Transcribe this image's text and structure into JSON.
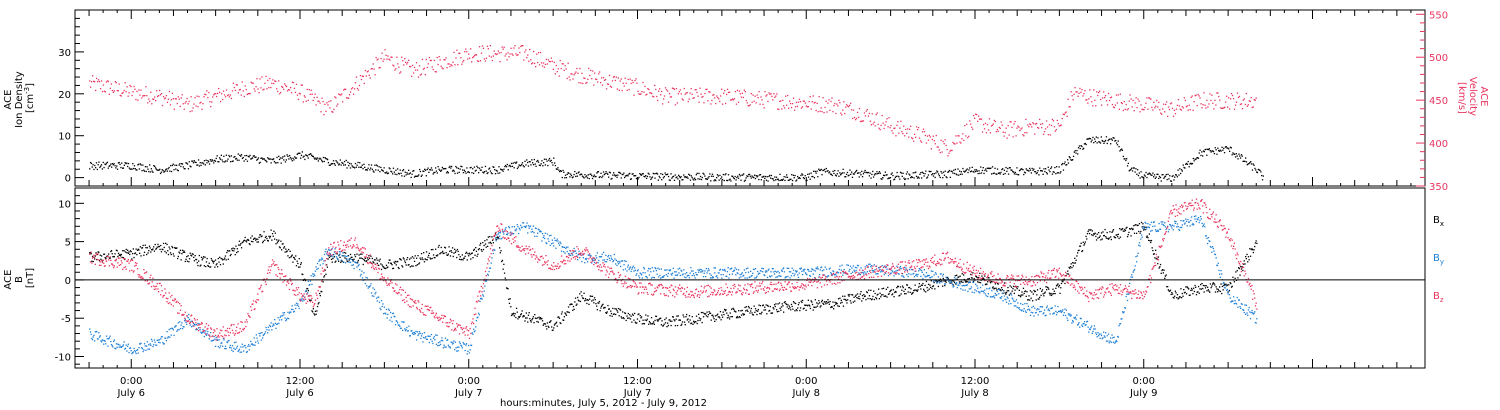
{
  "chart_data": [
    {
      "type": "scatter",
      "panel": "top",
      "left_ylabel_lines": [
        "ACE",
        "Ion Density",
        "[cm"
      ],
      "left_ylabel_superscript": "-3",
      "left_ylabel_tail": "]",
      "right_ylabel_lines": [
        "ACE",
        "Velocity",
        "[km/s]"
      ],
      "ylim_left": [
        -2,
        40
      ],
      "ylim_right": [
        350,
        555
      ],
      "y_ticks_left": [
        0,
        10,
        20,
        30
      ],
      "y_ticks_right": [
        350,
        400,
        450,
        500,
        550
      ],
      "xlim_hours": [
        -4,
        92
      ],
      "series": [
        {
          "axis": "left",
          "color": "#000000",
          "keypoints": [
            [
              -3,
              3
            ],
            [
              0,
              3
            ],
            [
              2,
              2
            ],
            [
              4,
              3
            ],
            [
              6,
              4.5
            ],
            [
              8,
              5
            ],
            [
              10,
              4
            ],
            [
              12,
              5.5
            ],
            [
              14,
              4
            ],
            [
              16,
              3
            ],
            [
              18,
              2
            ],
            [
              20,
              1
            ],
            [
              22,
              2
            ],
            [
              24,
              2
            ],
            [
              26,
              2
            ],
            [
              28,
              3.5
            ],
            [
              30,
              4
            ],
            [
              30.5,
              1
            ],
            [
              36,
              0.5
            ],
            [
              42,
              0.2
            ],
            [
              48,
              0.2
            ],
            [
              49,
              1.5
            ],
            [
              52,
              1
            ],
            [
              54,
              0.5
            ],
            [
              58,
              1
            ],
            [
              60,
              2
            ],
            [
              64,
              1.5
            ],
            [
              66,
              2
            ],
            [
              68,
              9
            ],
            [
              70,
              9
            ],
            [
              71,
              2
            ],
            [
              72,
              0.5
            ],
            [
              74,
              0
            ],
            [
              76,
              6
            ],
            [
              78,
              7
            ],
            [
              80,
              2
            ],
            [
              80.5,
              0
            ]
          ]
        },
        {
          "axis": "right",
          "color": "#e8355f",
          "keypoints": [
            [
              -3,
              470
            ],
            [
              0,
              460
            ],
            [
              2,
              455
            ],
            [
              4,
              445
            ],
            [
              6,
              455
            ],
            [
              8,
              465
            ],
            [
              10,
              470
            ],
            [
              12,
              460
            ],
            [
              14,
              440
            ],
            [
              16,
              470
            ],
            [
              18,
              500
            ],
            [
              20,
              485
            ],
            [
              22,
              495
            ],
            [
              24,
              505
            ],
            [
              28,
              505
            ],
            [
              30,
              490
            ],
            [
              32,
              480
            ],
            [
              36,
              465
            ],
            [
              38,
              455
            ],
            [
              42,
              455
            ],
            [
              46,
              450
            ],
            [
              50,
              445
            ],
            [
              52,
              435
            ],
            [
              54,
              420
            ],
            [
              56,
              410
            ],
            [
              58,
              395
            ],
            [
              60,
              425
            ],
            [
              62,
              415
            ],
            [
              64,
              420
            ],
            [
              66,
              420
            ],
            [
              67,
              460
            ],
            [
              68,
              455
            ],
            [
              70,
              450
            ],
            [
              72,
              445
            ],
            [
              74,
              440
            ],
            [
              76,
              450
            ],
            [
              78,
              450
            ],
            [
              80,
              450
            ]
          ]
        }
      ]
    },
    {
      "type": "scatter",
      "panel": "bottom",
      "left_ylabel_lines": [
        "ACE",
        "B",
        "[nT]"
      ],
      "ylim": [
        -11.5,
        12
      ],
      "y_ticks": [
        -10,
        -5,
        0,
        5,
        10
      ],
      "zero_line": true,
      "xlim_hours": [
        -4,
        92
      ],
      "series": [
        {
          "name": "B",
          "subscript": "x",
          "color": "#000000",
          "keypoints": [
            [
              -3,
              3
            ],
            [
              0,
              3.5
            ],
            [
              2,
              4.5
            ],
            [
              4,
              3
            ],
            [
              6,
              2
            ],
            [
              8,
              5
            ],
            [
              10,
              6
            ],
            [
              12,
              2
            ],
            [
              13,
              -5
            ],
            [
              14,
              3
            ],
            [
              16,
              3
            ],
            [
              18,
              2
            ],
            [
              20,
              2.5
            ],
            [
              22,
              4
            ],
            [
              24,
              3
            ],
            [
              26,
              6
            ],
            [
              27,
              -4
            ],
            [
              30,
              -6
            ],
            [
              32,
              -2
            ],
            [
              34,
              -4
            ],
            [
              36,
              -5
            ],
            [
              38,
              -5.5
            ],
            [
              42,
              -4.5
            ],
            [
              46,
              -3.5
            ],
            [
              50,
              -3
            ],
            [
              52,
              -2
            ],
            [
              56,
              -1
            ],
            [
              58,
              0
            ],
            [
              60,
              0.5
            ],
            [
              62,
              -1
            ],
            [
              64,
              -2
            ],
            [
              66,
              -1
            ],
            [
              68,
              6
            ],
            [
              70,
              6
            ],
            [
              72,
              7
            ],
            [
              74,
              -2
            ],
            [
              76,
              -1
            ],
            [
              78,
              -1
            ],
            [
              80,
              5
            ]
          ]
        },
        {
          "name": "B",
          "subscript": "y",
          "color": "#1e7fd6",
          "keypoints": [
            [
              -3,
              -7
            ],
            [
              0,
              -9
            ],
            [
              2,
              -8
            ],
            [
              4,
              -5
            ],
            [
              6,
              -8
            ],
            [
              8,
              -9
            ],
            [
              10,
              -6
            ],
            [
              12,
              -3
            ],
            [
              13,
              1
            ],
            [
              14,
              4
            ],
            [
              16,
              2
            ],
            [
              18,
              -4
            ],
            [
              20,
              -7
            ],
            [
              22,
              -8
            ],
            [
              24,
              -9
            ],
            [
              26,
              6
            ],
            [
              28,
              7
            ],
            [
              30,
              5
            ],
            [
              32,
              3
            ],
            [
              34,
              3
            ],
            [
              36,
              1
            ],
            [
              40,
              1
            ],
            [
              44,
              1
            ],
            [
              48,
              1
            ],
            [
              52,
              1.5
            ],
            [
              56,
              1
            ],
            [
              58,
              0
            ],
            [
              60,
              -1
            ],
            [
              62,
              -2
            ],
            [
              64,
              -4
            ],
            [
              66,
              -4
            ],
            [
              68,
              -6
            ],
            [
              70,
              -8
            ],
            [
              72,
              7
            ],
            [
              74,
              7
            ],
            [
              76,
              8
            ],
            [
              78,
              -2
            ],
            [
              80,
              -5
            ]
          ]
        },
        {
          "name": "B",
          "subscript": "z",
          "color": "#e8355f",
          "keypoints": [
            [
              -3,
              3
            ],
            [
              0,
              2
            ],
            [
              2,
              -1
            ],
            [
              4,
              -5
            ],
            [
              6,
              -7
            ],
            [
              8,
              -6
            ],
            [
              10,
              2
            ],
            [
              12,
              -2
            ],
            [
              13,
              -3
            ],
            [
              14,
              4
            ],
            [
              16,
              5
            ],
            [
              18,
              0
            ],
            [
              20,
              -3
            ],
            [
              22,
              -5
            ],
            [
              24,
              -7
            ],
            [
              26,
              7
            ],
            [
              28,
              4
            ],
            [
              30,
              2
            ],
            [
              32,
              4
            ],
            [
              34,
              1
            ],
            [
              36,
              -1
            ],
            [
              40,
              -1.5
            ],
            [
              44,
              -1
            ],
            [
              48,
              -0.5
            ],
            [
              52,
              1
            ],
            [
              56,
              2
            ],
            [
              58,
              3
            ],
            [
              60,
              1
            ],
            [
              62,
              0
            ],
            [
              64,
              0
            ],
            [
              66,
              1
            ],
            [
              68,
              -2
            ],
            [
              70,
              -1
            ],
            [
              72,
              -2
            ],
            [
              74,
              9
            ],
            [
              76,
              10
            ],
            [
              78,
              6
            ],
            [
              80,
              -3
            ]
          ]
        }
      ]
    }
  ],
  "x_axis": {
    "ticks": [
      {
        "hour": 0,
        "time": "0:00",
        "day": "July 6"
      },
      {
        "hour": 12,
        "time": "12:00",
        "day": "July 6"
      },
      {
        "hour": 24,
        "time": "0:00",
        "day": "July 7"
      },
      {
        "hour": 36,
        "time": "12:00",
        "day": "July 7"
      },
      {
        "hour": 48,
        "time": "0:00",
        "day": "July 8"
      },
      {
        "hour": 60,
        "time": "12:00",
        "day": "July 8"
      },
      {
        "hour": 72,
        "time": "0:00",
        "day": "July 9"
      }
    ],
    "label": "hours:minutes,  July  5, 2012  -  July  9, 2012"
  },
  "colors": {
    "density": "#000000",
    "velocity": "#e8355f",
    "bx": "#000000",
    "by": "#1e7fd6",
    "bz": "#e8355f",
    "axis": "#000000"
  }
}
